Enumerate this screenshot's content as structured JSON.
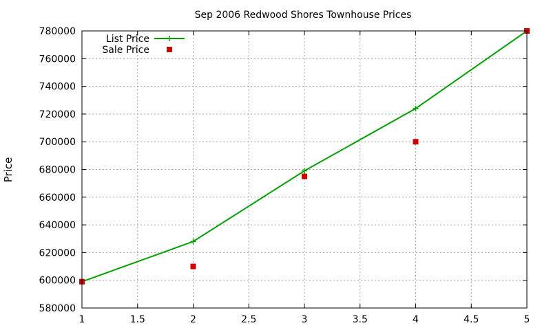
{
  "chart_data": {
    "type": "line",
    "title": "Sep 2006 Redwood Shores Townhouse Prices",
    "xlabel": "",
    "ylabel": "Price",
    "xlim": [
      1,
      5
    ],
    "ylim": [
      580000,
      780000
    ],
    "xticks": [
      1,
      1.5,
      2,
      2.5,
      3,
      3.5,
      4,
      4.5,
      5
    ],
    "xtick_labels": [
      "1",
      "1.5",
      "2",
      "2.5",
      "3",
      "3.5",
      "4",
      "4.5",
      "5"
    ],
    "yticks": [
      580000,
      600000,
      620000,
      640000,
      660000,
      680000,
      700000,
      720000,
      740000,
      760000,
      780000
    ],
    "ytick_labels": [
      "580000",
      "600000",
      "620000",
      "640000",
      "660000",
      "680000",
      "700000",
      "720000",
      "740000",
      "760000",
      "780000"
    ],
    "grid": true,
    "legend_position": "top-left",
    "series": [
      {
        "name": "List Price",
        "style": "line-with-plus-markers",
        "color": "#00a000",
        "x": [
          1,
          2,
          3,
          4,
          5
        ],
        "y": [
          599000,
          628000,
          679000,
          724000,
          780000
        ]
      },
      {
        "name": "Sale Price",
        "style": "square-markers",
        "color": "#cc0000",
        "x": [
          1,
          2,
          3,
          4,
          5
        ],
        "y": [
          599000,
          610000,
          675000,
          700000,
          780000
        ]
      }
    ]
  }
}
